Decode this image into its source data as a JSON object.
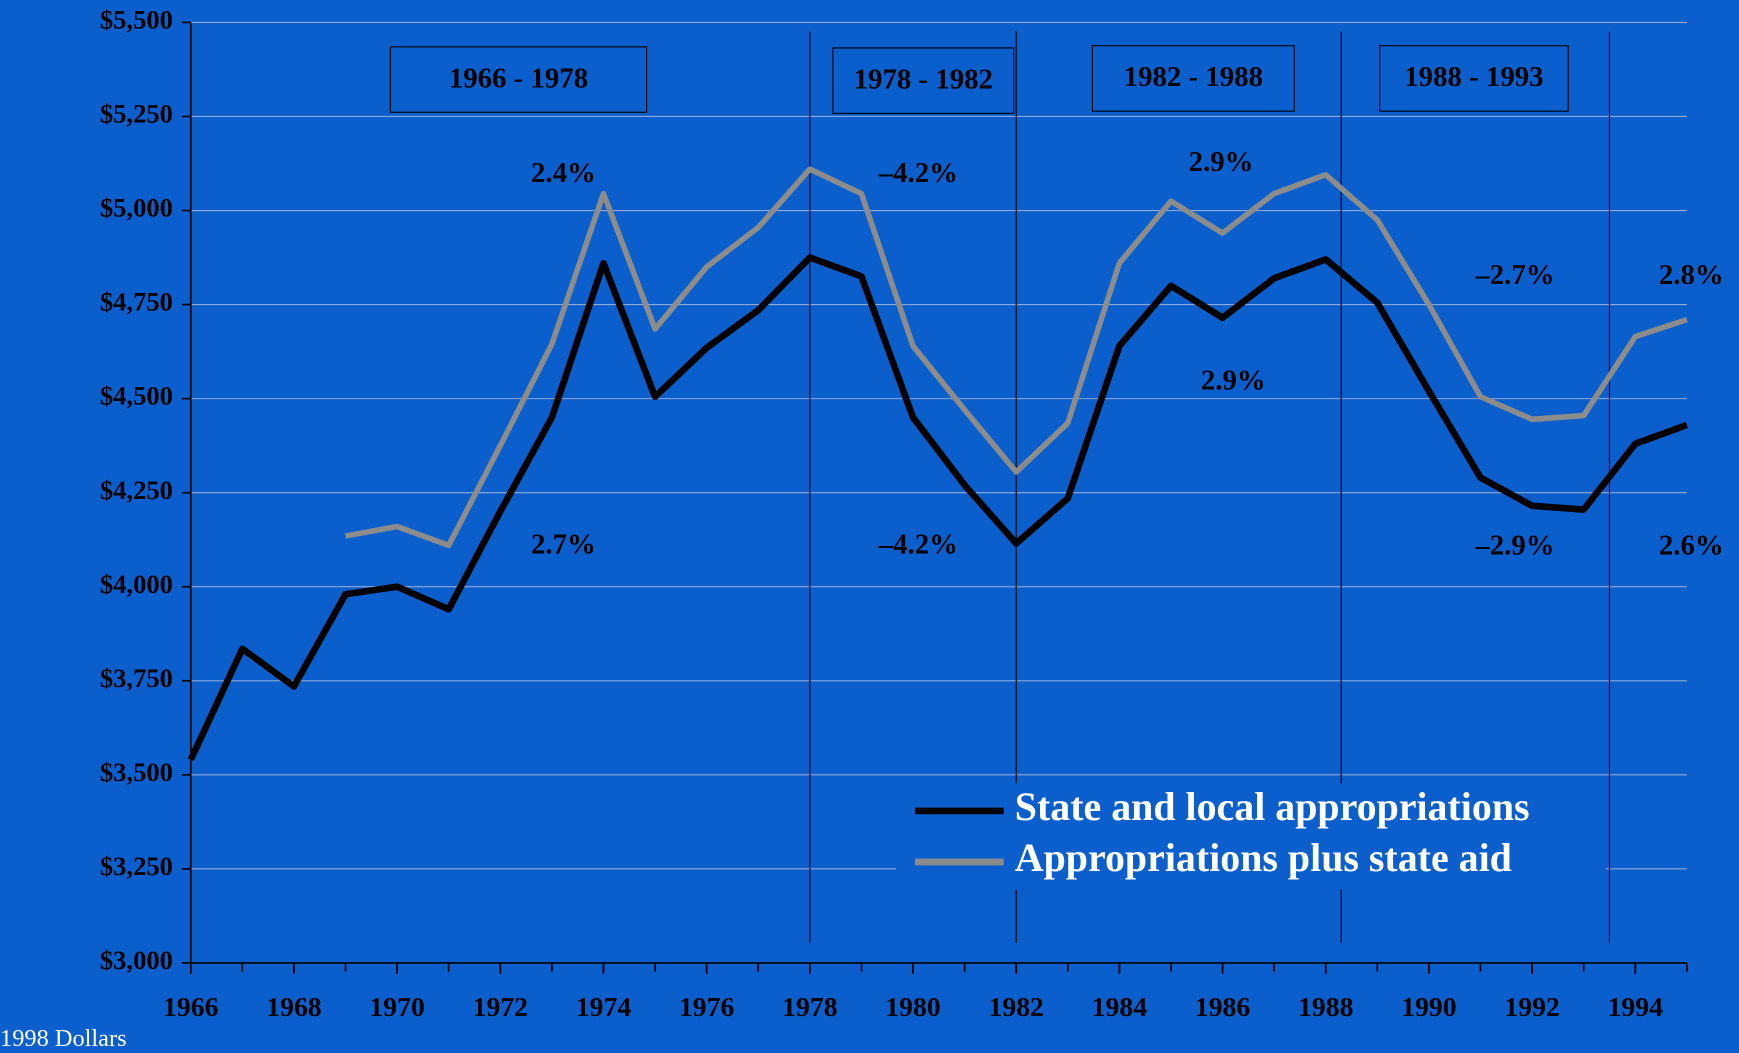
{
  "chart_data": {
    "type": "line",
    "x": [
      1966,
      1967,
      1968,
      1969,
      1970,
      1971,
      1972,
      1973,
      1974,
      1975,
      1976,
      1977,
      1978,
      1979,
      1980,
      1981,
      1982,
      1983,
      1984,
      1985,
      1986,
      1987,
      1988,
      1989,
      1990,
      1991,
      1992,
      1993,
      1994,
      1995
    ],
    "series": [
      {
        "name": "State and local appropriations",
        "color": "#000000",
        "values": [
          3540,
          3835,
          3735,
          3980,
          4000,
          3940,
          4200,
          4450,
          4860,
          4505,
          4635,
          4735,
          4875,
          4825,
          4450,
          4270,
          4115,
          4235,
          4640,
          4800,
          4715,
          4820,
          4870,
          4755,
          4520,
          4290,
          4215,
          4205,
          4380,
          4430
        ]
      },
      {
        "name": "Appropriations plus state aid",
        "color": "#8c8c8c",
        "values": [
          null,
          null,
          null,
          4135,
          4160,
          4110,
          4375,
          4645,
          5045,
          4685,
          4850,
          4955,
          5110,
          5045,
          4640,
          4470,
          4305,
          4435,
          4860,
          5025,
          4940,
          5045,
          5095,
          4975,
          4750,
          4505,
          4445,
          4455,
          4665,
          4710
        ]
      }
    ],
    "xlim": [
      1966,
      1995
    ],
    "xticks": [
      1966,
      1968,
      1970,
      1972,
      1974,
      1976,
      1978,
      1980,
      1982,
      1984,
      1986,
      1988,
      1990,
      1992,
      1994
    ],
    "ylim": [
      3000,
      5500
    ],
    "yticks": [
      {
        "value": 3000,
        "label": "$3,000"
      },
      {
        "value": 3250,
        "label": "$3,250"
      },
      {
        "value": 3500,
        "label": "$3,500"
      },
      {
        "value": 3750,
        "label": "$3,750"
      },
      {
        "value": 4000,
        "label": "$4,000"
      },
      {
        "value": 4250,
        "label": "$4,250"
      },
      {
        "value": 4500,
        "label": "$4,500"
      },
      {
        "value": 4750,
        "label": "$4,750"
      },
      {
        "value": 5000,
        "label": "$5,000"
      },
      {
        "value": 5250,
        "label": "$5,250"
      },
      {
        "value": 5500,
        "label": "$5,500"
      }
    ],
    "grid": true,
    "period_dividers": [
      1978,
      1982,
      1988.3,
      1993.5
    ],
    "periods": [
      "1966 - 1978",
      "1978 - 1982",
      "1982 - 1988",
      "1988 - 1993"
    ],
    "annotations": [
      "2.4%",
      "2.7%",
      "–4.2%",
      "–4.2%",
      "2.9%",
      "2.9%",
      "–2.7%",
      "–2.9%",
      "2.8%",
      "2.6%"
    ],
    "units_label": "1998 Dollars",
    "legend": "lower right"
  }
}
